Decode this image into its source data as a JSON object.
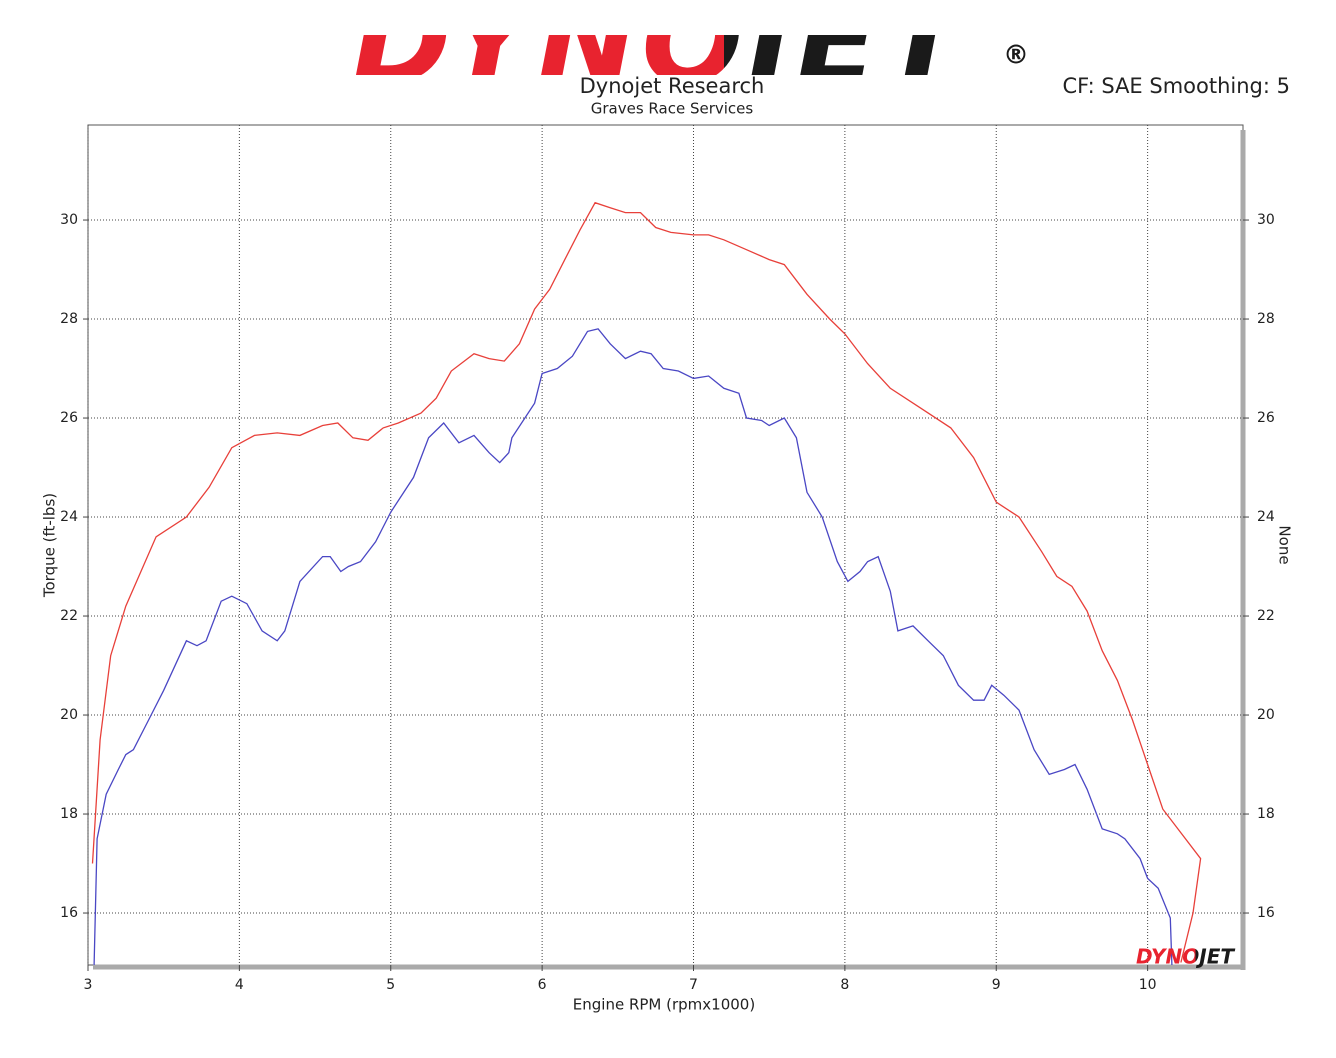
{
  "chart_data": {
    "type": "line",
    "logo": "DYNOJET",
    "logo_mark": "®",
    "corner_logo": "DYNOJET",
    "title": "Dynojet Research",
    "subtitle": "Graves Race Services",
    "info": "CF: SAE Smoothing: 5",
    "xlabel": "Engine RPM (rpmx1000)",
    "ylabel": "Torque (ft-lbs)",
    "y2label": "None",
    "xlim": [
      3,
      10.63
    ],
    "xticks": [
      3,
      4,
      5,
      6,
      7,
      8,
      9,
      10
    ],
    "ylim": [
      14.95,
      31.92
    ],
    "yticks": [
      16,
      18,
      20,
      22,
      24,
      26,
      28,
      30
    ],
    "y2lim": [
      14.95,
      31.92
    ],
    "y2ticks": [
      16,
      18,
      20,
      22,
      24,
      26,
      28,
      30
    ],
    "grid": true,
    "series": [
      {
        "color": "#e8403a",
        "x": [
          3.03,
          3.08,
          3.15,
          3.25,
          3.45,
          3.65,
          3.8,
          3.95,
          4.1,
          4.25,
          4.4,
          4.55,
          4.65,
          4.75,
          4.85,
          4.95,
          5.05,
          5.2,
          5.3,
          5.4,
          5.55,
          5.65,
          5.75,
          5.85,
          5.95,
          6.05,
          6.15,
          6.25,
          6.35,
          6.45,
          6.55,
          6.65,
          6.75,
          6.85,
          7.0,
          7.1,
          7.2,
          7.35,
          7.5,
          7.6,
          7.75,
          7.9,
          8.0,
          8.15,
          8.3,
          8.5,
          8.7,
          8.85,
          9.0,
          9.15,
          9.3,
          9.4,
          9.5,
          9.6,
          9.7,
          9.8,
          9.9,
          10.0,
          10.1,
          10.2,
          10.35,
          10.3,
          10.22
        ],
        "values": [
          17.0,
          19.5,
          21.2,
          22.2,
          23.6,
          24.0,
          24.6,
          25.4,
          25.65,
          25.7,
          25.65,
          25.85,
          25.9,
          25.6,
          25.55,
          25.8,
          25.9,
          26.1,
          26.4,
          26.95,
          27.3,
          27.2,
          27.15,
          27.5,
          28.2,
          28.6,
          29.2,
          29.8,
          30.35,
          30.25,
          30.15,
          30.15,
          29.85,
          29.75,
          29.7,
          29.7,
          29.6,
          29.4,
          29.2,
          29.1,
          28.5,
          28.0,
          27.7,
          27.1,
          26.6,
          26.2,
          25.8,
          25.2,
          24.3,
          24.0,
          23.3,
          22.8,
          22.6,
          22.1,
          21.3,
          20.7,
          19.9,
          19.0,
          18.1,
          17.7,
          17.1,
          16.0,
          15.0
        ]
      },
      {
        "color": "#4a47c4",
        "x": [
          3.04,
          3.06,
          3.12,
          3.2,
          3.25,
          3.3,
          3.4,
          3.5,
          3.65,
          3.72,
          3.78,
          3.88,
          3.95,
          4.05,
          4.15,
          4.25,
          4.3,
          4.4,
          4.55,
          4.6,
          4.67,
          4.72,
          4.8,
          4.9,
          5.0,
          5.15,
          5.25,
          5.35,
          5.45,
          5.55,
          5.65,
          5.72,
          5.78,
          5.8,
          5.95,
          6.0,
          6.1,
          6.2,
          6.3,
          6.37,
          6.45,
          6.55,
          6.65,
          6.72,
          6.8,
          6.9,
          7.0,
          7.1,
          7.2,
          7.3,
          7.35,
          7.45,
          7.5,
          7.6,
          7.68,
          7.75,
          7.85,
          7.95,
          8.02,
          8.1,
          8.15,
          8.22,
          8.3,
          8.35,
          8.45,
          8.55,
          8.65,
          8.75,
          8.85,
          8.92,
          8.97,
          9.05,
          9.15,
          9.25,
          9.35,
          9.45,
          9.52,
          9.6,
          9.7,
          9.8,
          9.85,
          9.95,
          10.0,
          10.07,
          10.15,
          10.16
        ],
        "values": [
          14.95,
          17.5,
          18.4,
          18.9,
          19.2,
          19.3,
          19.9,
          20.5,
          21.5,
          21.4,
          21.5,
          22.3,
          22.4,
          22.25,
          21.7,
          21.5,
          21.7,
          22.7,
          23.2,
          23.2,
          22.9,
          23.0,
          23.1,
          23.5,
          24.1,
          24.8,
          25.6,
          25.9,
          25.5,
          25.65,
          25.3,
          25.1,
          25.3,
          25.6,
          26.3,
          26.9,
          27.0,
          27.25,
          27.75,
          27.8,
          27.5,
          27.2,
          27.35,
          27.3,
          27.0,
          26.95,
          26.8,
          26.85,
          26.6,
          26.5,
          26.0,
          25.95,
          25.85,
          26.0,
          25.6,
          24.5,
          24.0,
          23.1,
          22.7,
          22.9,
          23.1,
          23.2,
          22.5,
          21.7,
          21.8,
          21.5,
          21.2,
          20.6,
          20.3,
          20.3,
          20.6,
          20.4,
          20.1,
          19.3,
          18.8,
          18.9,
          19.0,
          18.5,
          17.7,
          17.6,
          17.5,
          17.1,
          16.7,
          16.5,
          15.9,
          14.95
        ]
      }
    ]
  }
}
